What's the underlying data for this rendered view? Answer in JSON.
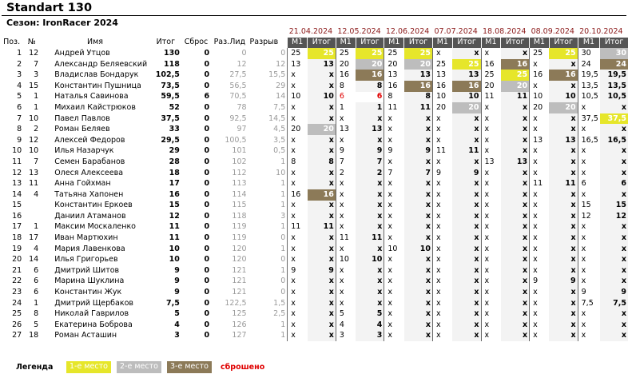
{
  "header": {
    "title": "Standart 130",
    "season": "Сезон: IronRacer 2024"
  },
  "columns": {
    "pos": "Поз.",
    "num": "№",
    "name": "Имя",
    "total": "Итог",
    "drop": "Сброс",
    "gap_leader": "Раз.Лид",
    "gap": "Разрыв"
  },
  "races": [
    {
      "date": "21.04.2024",
      "m1": "М1",
      "result": "Итог"
    },
    {
      "date": "12.05.2024",
      "m1": "М1",
      "result": "Итог"
    },
    {
      "date": "12.06.2024",
      "m1": "М1",
      "result": "Итог"
    },
    {
      "date": "07.07.2024",
      "m1": "М1",
      "result": "Итог"
    },
    {
      "date": "18.08.2024",
      "m1": "М1",
      "result": "Итог"
    },
    {
      "date": "08.09.2024",
      "m1": "М1",
      "result": "Итог"
    },
    {
      "date": "20.10.2024",
      "m1": "М1",
      "result": "Итог"
    }
  ],
  "rows": [
    {
      "pos": "1",
      "num": "12",
      "name": "Андрей Утцов",
      "total": "130",
      "drop": "0",
      "gap_leader": "0",
      "gap": "0",
      "races": [
        [
          "25",
          "25",
          "p1"
        ],
        [
          "25",
          "25",
          "p1"
        ],
        [
          "25",
          "25",
          "p1"
        ],
        [
          "x",
          "x",
          ""
        ],
        [
          "x",
          "x",
          ""
        ],
        [
          "25",
          "25",
          "p1"
        ],
        [
          "30",
          "30",
          "p2"
        ]
      ]
    },
    {
      "pos": "2",
      "num": "7",
      "name": "Александр Беляевский",
      "total": "118",
      "drop": "0",
      "gap_leader": "12",
      "gap": "12",
      "races": [
        [
          "13",
          "13",
          ""
        ],
        [
          "20",
          "20",
          "p2"
        ],
        [
          "20",
          "20",
          "p2"
        ],
        [
          "25",
          "25",
          "p1"
        ],
        [
          "16",
          "16",
          "p3"
        ],
        [
          "x",
          "x",
          ""
        ],
        [
          "24",
          "24",
          "p3"
        ]
      ]
    },
    {
      "pos": "3",
      "num": "3",
      "name": "Владислав Бондарук",
      "total": "102,5",
      "drop": "0",
      "gap_leader": "27,5",
      "gap": "15,5",
      "races": [
        [
          "x",
          "x",
          ""
        ],
        [
          "16",
          "16",
          "p3"
        ],
        [
          "13",
          "13",
          ""
        ],
        [
          "13",
          "13",
          ""
        ],
        [
          "25",
          "25",
          "p1"
        ],
        [
          "16",
          "16",
          "p3"
        ],
        [
          "19,5",
          "19,5",
          ""
        ]
      ]
    },
    {
      "pos": "4",
      "num": "15",
      "name": "Константин Пушница",
      "total": "73,5",
      "drop": "0",
      "gap_leader": "56,5",
      "gap": "29",
      "races": [
        [
          "x",
          "x",
          ""
        ],
        [
          "8",
          "8",
          ""
        ],
        [
          "16",
          "16",
          "p3"
        ],
        [
          "16",
          "16",
          "p3"
        ],
        [
          "20",
          "20",
          "p2"
        ],
        [
          "x",
          "x",
          ""
        ],
        [
          "13,5",
          "13,5",
          ""
        ]
      ]
    },
    {
      "pos": "5",
      "num": "1",
      "name": "Наталья Савинова",
      "total": "59,5",
      "drop": "6",
      "gap_leader": "70,5",
      "gap": "14",
      "races": [
        [
          "10",
          "10",
          ""
        ],
        [
          "6",
          "6",
          "rd"
        ],
        [
          "8",
          "8",
          ""
        ],
        [
          "10",
          "10",
          ""
        ],
        [
          "11",
          "11",
          ""
        ],
        [
          "10",
          "10",
          ""
        ],
        [
          "10,5",
          "10,5",
          ""
        ]
      ]
    },
    {
      "pos": "6",
      "num": "1",
      "name": "Михаил Кайстрюков",
      "total": "52",
      "drop": "0",
      "gap_leader": "78",
      "gap": "7,5",
      "races": [
        [
          "x",
          "x",
          ""
        ],
        [
          "1",
          "1",
          ""
        ],
        [
          "11",
          "11",
          ""
        ],
        [
          "20",
          "20",
          "p2"
        ],
        [
          "x",
          "x",
          ""
        ],
        [
          "20",
          "20",
          "p2"
        ],
        [
          "x",
          "x",
          ""
        ]
      ]
    },
    {
      "pos": "7",
      "num": "10",
      "name": "Павел Павлов",
      "total": "37,5",
      "drop": "0",
      "gap_leader": "92,5",
      "gap": "14,5",
      "races": [
        [
          "x",
          "x",
          ""
        ],
        [
          "x",
          "x",
          ""
        ],
        [
          "x",
          "x",
          ""
        ],
        [
          "x",
          "x",
          ""
        ],
        [
          "x",
          "x",
          ""
        ],
        [
          "x",
          "x",
          ""
        ],
        [
          "37,5",
          "37,5",
          "p1"
        ]
      ]
    },
    {
      "pos": "8",
      "num": "2",
      "name": "Роман Беляев",
      "total": "33",
      "drop": "0",
      "gap_leader": "97",
      "gap": "4,5",
      "races": [
        [
          "20",
          "20",
          "p2"
        ],
        [
          "13",
          "13",
          ""
        ],
        [
          "x",
          "x",
          ""
        ],
        [
          "x",
          "x",
          ""
        ],
        [
          "x",
          "x",
          ""
        ],
        [
          "x",
          "x",
          ""
        ],
        [
          "x",
          "x",
          ""
        ]
      ]
    },
    {
      "pos": "9",
      "num": "12",
      "name": "Алексей Федоров",
      "total": "29,5",
      "drop": "0",
      "gap_leader": "100,5",
      "gap": "3,5",
      "races": [
        [
          "x",
          "x",
          ""
        ],
        [
          "x",
          "x",
          ""
        ],
        [
          "x",
          "x",
          ""
        ],
        [
          "x",
          "x",
          ""
        ],
        [
          "x",
          "x",
          ""
        ],
        [
          "13",
          "13",
          ""
        ],
        [
          "16,5",
          "16,5",
          ""
        ]
      ]
    },
    {
      "pos": "10",
      "num": "10",
      "name": "Илья Назарчук",
      "total": "29",
      "drop": "0",
      "gap_leader": "101",
      "gap": "0,5",
      "races": [
        [
          "x",
          "x",
          ""
        ],
        [
          "9",
          "9",
          ""
        ],
        [
          "9",
          "9",
          ""
        ],
        [
          "11",
          "11",
          ""
        ],
        [
          "x",
          "x",
          ""
        ],
        [
          "x",
          "x",
          ""
        ],
        [
          "x",
          "x",
          ""
        ]
      ]
    },
    {
      "pos": "11",
      "num": "7",
      "name": "Семен Барабанов",
      "total": "28",
      "drop": "0",
      "gap_leader": "102",
      "gap": "1",
      "races": [
        [
          "8",
          "8",
          ""
        ],
        [
          "7",
          "7",
          ""
        ],
        [
          "x",
          "x",
          ""
        ],
        [
          "x",
          "x",
          ""
        ],
        [
          "13",
          "13",
          ""
        ],
        [
          "x",
          "x",
          ""
        ],
        [
          "x",
          "x",
          ""
        ]
      ]
    },
    {
      "pos": "12",
      "num": "13",
      "name": "Олеся Алексеева",
      "total": "18",
      "drop": "0",
      "gap_leader": "112",
      "gap": "10",
      "races": [
        [
          "x",
          "x",
          ""
        ],
        [
          "2",
          "2",
          ""
        ],
        [
          "7",
          "7",
          ""
        ],
        [
          "9",
          "9",
          ""
        ],
        [
          "x",
          "x",
          ""
        ],
        [
          "x",
          "x",
          ""
        ],
        [
          "x",
          "x",
          ""
        ]
      ]
    },
    {
      "pos": "13",
      "num": "11",
      "name": "Анна Гойхман",
      "total": "17",
      "drop": "0",
      "gap_leader": "113",
      "gap": "1",
      "races": [
        [
          "x",
          "x",
          ""
        ],
        [
          "x",
          "x",
          ""
        ],
        [
          "x",
          "x",
          ""
        ],
        [
          "x",
          "x",
          ""
        ],
        [
          "x",
          "x",
          ""
        ],
        [
          "11",
          "11",
          ""
        ],
        [
          "6",
          "6",
          ""
        ]
      ]
    },
    {
      "pos": "14",
      "num": "4",
      "name": "Татьяна Хапонен",
      "total": "16",
      "drop": "0",
      "gap_leader": "114",
      "gap": "1",
      "races": [
        [
          "16",
          "16",
          "p3"
        ],
        [
          "x",
          "x",
          ""
        ],
        [
          "x",
          "x",
          ""
        ],
        [
          "x",
          "x",
          ""
        ],
        [
          "x",
          "x",
          ""
        ],
        [
          "x",
          "x",
          ""
        ],
        [
          "x",
          "x",
          ""
        ]
      ]
    },
    {
      "pos": "15",
      "num": "",
      "name": "Константин Еркоев",
      "total": "15",
      "drop": "0",
      "gap_leader": "115",
      "gap": "1",
      "races": [
        [
          "x",
          "x",
          ""
        ],
        [
          "x",
          "x",
          ""
        ],
        [
          "x",
          "x",
          ""
        ],
        [
          "x",
          "x",
          ""
        ],
        [
          "x",
          "x",
          ""
        ],
        [
          "x",
          "x",
          ""
        ],
        [
          "15",
          "15",
          ""
        ]
      ]
    },
    {
      "pos": "16",
      "num": "",
      "name": "Даниил Атаманов",
      "total": "12",
      "drop": "0",
      "gap_leader": "118",
      "gap": "3",
      "races": [
        [
          "x",
          "x",
          ""
        ],
        [
          "x",
          "x",
          ""
        ],
        [
          "x",
          "x",
          ""
        ],
        [
          "x",
          "x",
          ""
        ],
        [
          "x",
          "x",
          ""
        ],
        [
          "x",
          "x",
          ""
        ],
        [
          "12",
          "12",
          ""
        ]
      ]
    },
    {
      "pos": "17",
      "num": "1",
      "name": "Максим Москаленко",
      "total": "11",
      "drop": "0",
      "gap_leader": "119",
      "gap": "1",
      "races": [
        [
          "11",
          "11",
          ""
        ],
        [
          "x",
          "x",
          ""
        ],
        [
          "x",
          "x",
          ""
        ],
        [
          "x",
          "x",
          ""
        ],
        [
          "x",
          "x",
          ""
        ],
        [
          "x",
          "x",
          ""
        ],
        [
          "x",
          "x",
          ""
        ]
      ]
    },
    {
      "pos": "18",
      "num": "17",
      "name": "Иван Мартюхин",
      "total": "11",
      "drop": "0",
      "gap_leader": "119",
      "gap": "0",
      "races": [
        [
          "x",
          "x",
          ""
        ],
        [
          "11",
          "11",
          ""
        ],
        [
          "x",
          "x",
          ""
        ],
        [
          "x",
          "x",
          ""
        ],
        [
          "x",
          "x",
          ""
        ],
        [
          "x",
          "x",
          ""
        ],
        [
          "x",
          "x",
          ""
        ]
      ]
    },
    {
      "pos": "19",
      "num": "4",
      "name": "Мария Лавенкова",
      "total": "10",
      "drop": "0",
      "gap_leader": "120",
      "gap": "1",
      "races": [
        [
          "x",
          "x",
          ""
        ],
        [
          "x",
          "x",
          ""
        ],
        [
          "10",
          "10",
          ""
        ],
        [
          "x",
          "x",
          ""
        ],
        [
          "x",
          "x",
          ""
        ],
        [
          "x",
          "x",
          ""
        ],
        [
          "x",
          "x",
          ""
        ]
      ]
    },
    {
      "pos": "20",
      "num": "14",
      "name": "Илья Григорьев",
      "total": "10",
      "drop": "0",
      "gap_leader": "120",
      "gap": "0",
      "races": [
        [
          "x",
          "x",
          ""
        ],
        [
          "10",
          "10",
          ""
        ],
        [
          "x",
          "x",
          ""
        ],
        [
          "x",
          "x",
          ""
        ],
        [
          "x",
          "x",
          ""
        ],
        [
          "x",
          "x",
          ""
        ],
        [
          "x",
          "x",
          ""
        ]
      ]
    },
    {
      "pos": "21",
      "num": "6",
      "name": "Дмитрий Шитов",
      "total": "9",
      "drop": "0",
      "gap_leader": "121",
      "gap": "1",
      "races": [
        [
          "9",
          "9",
          ""
        ],
        [
          "x",
          "x",
          ""
        ],
        [
          "x",
          "x",
          ""
        ],
        [
          "x",
          "x",
          ""
        ],
        [
          "x",
          "x",
          ""
        ],
        [
          "x",
          "x",
          ""
        ],
        [
          "x",
          "x",
          ""
        ]
      ]
    },
    {
      "pos": "22",
      "num": "6",
      "name": "Марина Шуклина",
      "total": "9",
      "drop": "0",
      "gap_leader": "121",
      "gap": "0",
      "races": [
        [
          "x",
          "x",
          ""
        ],
        [
          "x",
          "x",
          ""
        ],
        [
          "x",
          "x",
          ""
        ],
        [
          "x",
          "x",
          ""
        ],
        [
          "x",
          "x",
          ""
        ],
        [
          "9",
          "9",
          ""
        ],
        [
          "x",
          "x",
          ""
        ]
      ]
    },
    {
      "pos": "23",
      "num": "6",
      "name": "Константин Жук",
      "total": "9",
      "drop": "0",
      "gap_leader": "121",
      "gap": "0",
      "races": [
        [
          "x",
          "x",
          ""
        ],
        [
          "x",
          "x",
          ""
        ],
        [
          "x",
          "x",
          ""
        ],
        [
          "x",
          "x",
          ""
        ],
        [
          "x",
          "x",
          ""
        ],
        [
          "x",
          "x",
          ""
        ],
        [
          "9",
          "9",
          ""
        ]
      ]
    },
    {
      "pos": "24",
      "num": "1",
      "name": "Дмитрий Щербаков",
      "total": "7,5",
      "drop": "0",
      "gap_leader": "122,5",
      "gap": "1,5",
      "races": [
        [
          "x",
          "x",
          ""
        ],
        [
          "x",
          "x",
          ""
        ],
        [
          "x",
          "x",
          ""
        ],
        [
          "x",
          "x",
          ""
        ],
        [
          "x",
          "x",
          ""
        ],
        [
          "x",
          "x",
          ""
        ],
        [
          "7,5",
          "7,5",
          ""
        ]
      ]
    },
    {
      "pos": "25",
      "num": "8",
      "name": "Николай Гаврилов",
      "total": "5",
      "drop": "0",
      "gap_leader": "125",
      "gap": "2,5",
      "races": [
        [
          "x",
          "x",
          ""
        ],
        [
          "5",
          "5",
          ""
        ],
        [
          "x",
          "x",
          ""
        ],
        [
          "x",
          "x",
          ""
        ],
        [
          "x",
          "x",
          ""
        ],
        [
          "x",
          "x",
          ""
        ],
        [
          "x",
          "x",
          ""
        ]
      ]
    },
    {
      "pos": "26",
      "num": "5",
      "name": "Екатерина Боброва",
      "total": "4",
      "drop": "0",
      "gap_leader": "126",
      "gap": "1",
      "races": [
        [
          "x",
          "x",
          ""
        ],
        [
          "4",
          "4",
          ""
        ],
        [
          "x",
          "x",
          ""
        ],
        [
          "x",
          "x",
          ""
        ],
        [
          "x",
          "x",
          ""
        ],
        [
          "x",
          "x",
          ""
        ],
        [
          "x",
          "x",
          ""
        ]
      ]
    },
    {
      "pos": "27",
      "num": "18",
      "name": "Роман Асташин",
      "total": "3",
      "drop": "0",
      "gap_leader": "127",
      "gap": "1",
      "races": [
        [
          "x",
          "x",
          ""
        ],
        [
          "3",
          "3",
          ""
        ],
        [
          "x",
          "x",
          ""
        ],
        [
          "x",
          "x",
          ""
        ],
        [
          "x",
          "x",
          ""
        ],
        [
          "x",
          "x",
          ""
        ],
        [
          "x",
          "x",
          ""
        ]
      ]
    }
  ],
  "legend": {
    "label": "Легенда",
    "first": "1-е место",
    "second": "2-е место",
    "third": "3-е место",
    "dropped": "сброшено"
  },
  "colors": {
    "first": "#e6e62a",
    "second": "#bdbdbd",
    "third": "#8c7a58",
    "dropped": "#e00000",
    "header_bg": "#555555",
    "date_color": "#8b1a1a"
  }
}
